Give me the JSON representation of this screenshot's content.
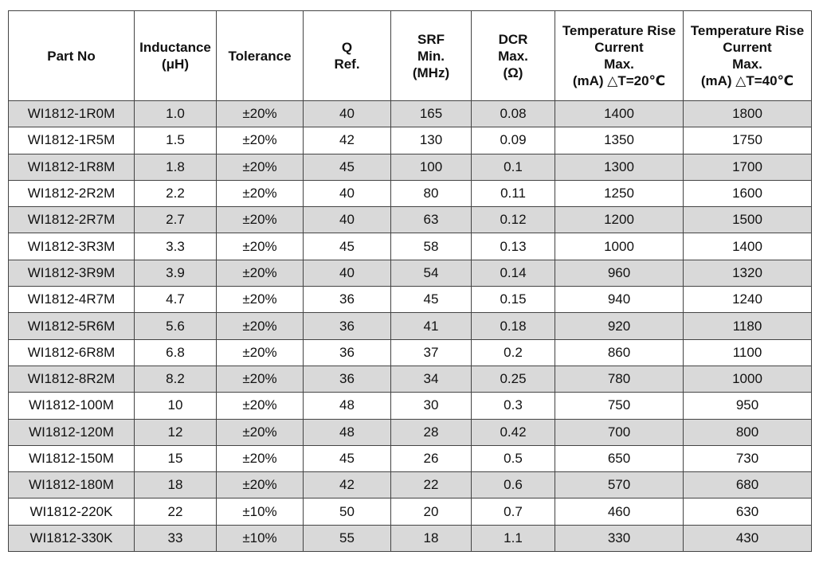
{
  "table": {
    "headers": [
      "Part No",
      "Inductance\n(μH)",
      "Tolerance",
      "Q\nRef.",
      "SRF\nMin.\n(MHz)",
      "DCR\nMax.\n(Ω)",
      "Temperature Rise\nCurrent\nMax.\n(mA) △T=20℃",
      "Temperature Rise\nCurrent\nMax.\n(mA) △T=40℃"
    ],
    "rows": [
      [
        "WI1812-1R0M",
        "1.0",
        "±20%",
        "40",
        "165",
        "0.08",
        "1400",
        "1800"
      ],
      [
        "WI1812-1R5M",
        "1.5",
        "±20%",
        "42",
        "130",
        "0.09",
        "1350",
        "1750"
      ],
      [
        "WI1812-1R8M",
        "1.8",
        "±20%",
        "45",
        "100",
        "0.1",
        "1300",
        "1700"
      ],
      [
        "WI1812-2R2M",
        "2.2",
        "±20%",
        "40",
        "80",
        "0.11",
        "1250",
        "1600"
      ],
      [
        "WI1812-2R7M",
        "2.7",
        "±20%",
        "40",
        "63",
        "0.12",
        "1200",
        "1500"
      ],
      [
        "WI1812-3R3M",
        "3.3",
        "±20%",
        "45",
        "58",
        "0.13",
        "1000",
        "1400"
      ],
      [
        "WI1812-3R9M",
        "3.9",
        "±20%",
        "40",
        "54",
        "0.14",
        "960",
        "1320"
      ],
      [
        "WI1812-4R7M",
        "4.7",
        "±20%",
        "36",
        "45",
        "0.15",
        "940",
        "1240"
      ],
      [
        "WI1812-5R6M",
        "5.6",
        "±20%",
        "36",
        "41",
        "0.18",
        "920",
        "1180"
      ],
      [
        "WI1812-6R8M",
        "6.8",
        "±20%",
        "36",
        "37",
        "0.2",
        "860",
        "1100"
      ],
      [
        "WI1812-8R2M",
        "8.2",
        "±20%",
        "36",
        "34",
        "0.25",
        "780",
        "1000"
      ],
      [
        "WI1812-100M",
        "10",
        "±20%",
        "48",
        "30",
        "0.3",
        "750",
        "950"
      ],
      [
        "WI1812-120M",
        "12",
        "±20%",
        "48",
        "28",
        "0.42",
        "700",
        "800"
      ],
      [
        "WI1812-150M",
        "15",
        "±20%",
        "45",
        "26",
        "0.5",
        "650",
        "730"
      ],
      [
        "WI1812-180M",
        "18",
        "±20%",
        "42",
        "22",
        "0.6",
        "570",
        "680"
      ],
      [
        "WI1812-220K",
        "22",
        "±10%",
        "50",
        "20",
        "0.7",
        "460",
        "630"
      ],
      [
        "WI1812-330K",
        "33",
        "±10%",
        "55",
        "18",
        "1.1",
        "330",
        "430"
      ]
    ]
  },
  "colors": {
    "shaded_row": "#d9d9d9",
    "border": "#444444"
  }
}
